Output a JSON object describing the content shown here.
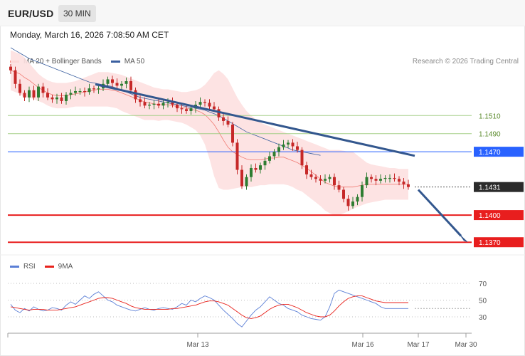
{
  "header": {
    "symbol": "EUR/USD",
    "timeframe": "30 MIN"
  },
  "timestamp": "Monday, March 16, 2026 7:08:50 AM CET",
  "credit": "Research © 2026 Trading Central",
  "legend_main": [
    {
      "label": "MA 20 + Bollinger Bands",
      "color": "#f28b82"
    },
    {
      "label": "MA 50",
      "color": "#3a5f9f"
    }
  ],
  "legend_rsi": [
    {
      "label": "RSI",
      "color": "#5b7fd6"
    },
    {
      "label": "9MA",
      "color": "#e8221c"
    }
  ],
  "colors": {
    "up": "#2e7d32",
    "down": "#c62828",
    "band_fill": "#fde0e0",
    "ma20": "#f07a72",
    "ma50": "#3a5f9f",
    "trendline": "#33578e",
    "green_level": "#a7d08a",
    "blue_level": "#2962ff",
    "red_level": "#e81e1e",
    "current": "#2b2b2b"
  },
  "chart_data": [
    {
      "type": "candlestick",
      "title": "EUR/USD 30 MIN",
      "x_ticks": [
        "Mar 13",
        "Mar 16",
        "Mar 17",
        "Mar 30"
      ],
      "ylim": [
        1.1356,
        1.1559
      ],
      "levels": [
        {
          "value": 1.151,
          "label": "1.1510",
          "kind": "resistance-minor"
        },
        {
          "value": 1.149,
          "label": "1.1490",
          "kind": "resistance-minor"
        },
        {
          "value": 1.147,
          "label": "1.1470",
          "kind": "pivot"
        },
        {
          "value": 1.1431,
          "label": "1.1431",
          "kind": "current"
        },
        {
          "value": 1.14,
          "label": "1.1400",
          "kind": "support"
        },
        {
          "value": 1.137,
          "label": "1.1370",
          "kind": "support"
        }
      ],
      "closes": [
        1.156,
        1.1545,
        1.1535,
        1.153,
        1.1538,
        1.153,
        1.1542,
        1.1535,
        1.153,
        1.1528,
        1.153,
        1.1526,
        1.1533,
        1.1535,
        1.1537,
        1.1537,
        1.1536,
        1.154,
        1.1539,
        1.154,
        1.1545,
        1.155,
        1.1546,
        1.1543,
        1.1545,
        1.1548,
        1.1538,
        1.1528,
        1.1525,
        1.1521,
        1.1522,
        1.1523,
        1.1521,
        1.1524,
        1.1525,
        1.1522,
        1.1518,
        1.1517,
        1.1515,
        1.1518,
        1.1522,
        1.1525,
        1.1524,
        1.152,
        1.1517,
        1.1508,
        1.1504,
        1.15,
        1.148,
        1.145,
        1.1432,
        1.1442,
        1.1452,
        1.145,
        1.1455,
        1.146,
        1.1465,
        1.147,
        1.1475,
        1.1478,
        1.148,
        1.1476,
        1.1472,
        1.1455,
        1.1445,
        1.1442,
        1.144,
        1.1438,
        1.144,
        1.1442,
        1.1433,
        1.1428,
        1.1418,
        1.141,
        1.1415,
        1.142,
        1.1433,
        1.1442,
        1.144,
        1.1438,
        1.144,
        1.1441,
        1.1441,
        1.144,
        1.1437,
        1.1434,
        1.1431
      ],
      "ma20": [
        1.156,
        1.1558,
        1.1556,
        1.1552,
        1.1549,
        1.1545,
        1.1541,
        1.1538,
        1.1535,
        1.1533,
        1.1532,
        1.1532,
        1.1532,
        1.1533,
        1.1534,
        1.1535,
        1.1536,
        1.1537,
        1.1538,
        1.1539,
        1.1539,
        1.1539,
        1.1538,
        1.1537,
        1.1535,
        1.1533,
        1.1531,
        1.1529,
        1.1527,
        1.1525,
        1.1524,
        1.1523,
        1.1522,
        1.1522,
        1.1522,
        1.1521,
        1.152,
        1.1519,
        1.1518,
        1.1517,
        1.1516,
        1.1514,
        1.1511,
        1.1506,
        1.15,
        1.1492,
        1.1483,
        1.1475,
        1.147,
        1.1467,
        1.1464,
        1.1462,
        1.1461,
        1.1461,
        1.1461,
        1.1462,
        1.1463,
        1.1463,
        1.1464,
        1.1464,
        1.1462,
        1.146,
        1.1458,
        1.1455,
        1.1452,
        1.1448,
        1.1444,
        1.144,
        1.1436,
        1.1434,
        1.1432,
        1.1431,
        1.1431,
        1.1431,
        1.1431,
        1.1432,
        1.1433,
        1.1434,
        1.1434,
        1.1434,
        1.1434,
        1.1434,
        1.1434,
        1.1434,
        1.1434,
        1.1434,
        1.1434
      ],
      "bb_upper": [
        1.1582,
        1.158,
        1.1578,
        1.1574,
        1.1568,
        1.1562,
        1.1556,
        1.1552,
        1.1549,
        1.1547,
        1.1546,
        1.1546,
        1.1546,
        1.1547,
        1.1548,
        1.155,
        1.1552,
        1.1554,
        1.1556,
        1.1558,
        1.1558,
        1.1558,
        1.1557,
        1.1556,
        1.1555,
        1.1553,
        1.1551,
        1.1549,
        1.1547,
        1.1545,
        1.1543,
        1.1541,
        1.154,
        1.1539,
        1.1539,
        1.1538,
        1.1537,
        1.1536,
        1.1536,
        1.1537,
        1.1538,
        1.154,
        1.1544,
        1.155,
        1.1557,
        1.156,
        1.1556,
        1.155,
        1.154,
        1.153,
        1.1522,
        1.1515,
        1.151,
        1.1506,
        1.1502,
        1.15,
        1.1498,
        1.1496,
        1.1494,
        1.1492,
        1.149,
        1.1488,
        1.1486,
        1.1484,
        1.1482,
        1.148,
        1.1478,
        1.1476,
        1.1474,
        1.1472,
        1.1472,
        1.1472,
        1.1471,
        1.147,
        1.147,
        1.1466,
        1.1462,
        1.1458,
        1.1456,
        1.1455,
        1.1454,
        1.1453,
        1.1452,
        1.1452,
        1.1451,
        1.1451,
        1.1451
      ],
      "bb_lower": [
        1.1538,
        1.1536,
        1.1534,
        1.153,
        1.153,
        1.1528,
        1.1526,
        1.1524,
        1.1521,
        1.1519,
        1.1518,
        1.1518,
        1.1518,
        1.1519,
        1.152,
        1.152,
        1.152,
        1.152,
        1.152,
        1.152,
        1.152,
        1.152,
        1.1519,
        1.1518,
        1.1515,
        1.1513,
        1.1511,
        1.1509,
        1.1507,
        1.1505,
        1.1505,
        1.1505,
        1.1504,
        1.1505,
        1.1505,
        1.1504,
        1.1503,
        1.1502,
        1.15,
        1.1497,
        1.1494,
        1.1488,
        1.1478,
        1.1462,
        1.1443,
        1.143,
        1.1428,
        1.1428,
        1.1429,
        1.143,
        1.1431,
        1.1431,
        1.1431,
        1.1432,
        1.1433,
        1.1433,
        1.1434,
        1.1434,
        1.1434,
        1.1434,
        1.1433,
        1.1431,
        1.1428,
        1.1426,
        1.1422,
        1.1418,
        1.1414,
        1.141,
        1.1405,
        1.1402,
        1.14,
        1.14,
        1.1402,
        1.1404,
        1.1407,
        1.1409,
        1.1411,
        1.1413,
        1.1414,
        1.1415,
        1.1416,
        1.1417,
        1.1417,
        1.1417,
        1.1417,
        1.1417,
        1.1417
      ],
      "ma50": [
        1.1585,
        1.1582,
        1.1579,
        1.1576,
        1.1573,
        1.1571,
        1.1569,
        1.1567,
        1.1565,
        1.1563,
        1.1561,
        1.1559,
        1.1557,
        1.1555,
        1.1553,
        1.1551,
        1.1549,
        1.1547,
        1.1546,
        1.1545,
        1.1544,
        1.1543,
        1.1542,
        1.154,
        1.1538,
        1.1536,
        1.1534,
        1.1532,
        1.153,
        1.1529,
        1.1528,
        1.1527,
        1.1526,
        1.1525,
        1.1524,
        1.1523,
        1.1522,
        1.1521,
        1.152,
        1.1519,
        1.1518,
        1.1517,
        1.1516,
        1.1514,
        1.1512,
        1.151,
        1.1507,
        1.1504,
        1.1501,
        1.1498,
        1.1495,
        1.1492,
        1.149,
        1.1488,
        1.1486,
        1.1484,
        1.1482,
        1.148,
        1.1478,
        1.1476,
        1.1474,
        1.1472,
        1.1471,
        1.147,
        1.1469,
        1.1468,
        1.1467,
        1.1466
      ]
    },
    {
      "type": "line",
      "title": "RSI",
      "ylim": [
        15,
        85
      ],
      "y_ticks": [
        30,
        50,
        70
      ],
      "series": [
        {
          "name": "RSI",
          "values": [
            45,
            38,
            35,
            40,
            37,
            42,
            39,
            37,
            38,
            41,
            40,
            38,
            44,
            48,
            45,
            50,
            55,
            52,
            57,
            60,
            55,
            50,
            48,
            44,
            42,
            40,
            38,
            37,
            39,
            41,
            39,
            38,
            40,
            41,
            40,
            39,
            42,
            46,
            44,
            50,
            48,
            52,
            55,
            53,
            50,
            44,
            38,
            33,
            28,
            22,
            18,
            25,
            32,
            38,
            42,
            48,
            54,
            50,
            46,
            44,
            40,
            38,
            36,
            32,
            30,
            28,
            27,
            26,
            30,
            42,
            58,
            62,
            60,
            58,
            56,
            54,
            52,
            50,
            48,
            46,
            42,
            40,
            40,
            40,
            40,
            40,
            40
          ]
        },
        {
          "name": "9MA",
          "values": [
            42,
            41,
            40,
            39,
            38,
            39,
            39,
            39,
            38,
            38,
            38,
            39,
            40,
            41,
            42,
            44,
            46,
            48,
            50,
            52,
            53,
            53,
            52,
            50,
            48,
            46,
            43,
            41,
            40,
            39,
            39,
            39,
            39,
            39,
            39,
            40,
            40,
            41,
            42,
            43,
            44,
            46,
            48,
            49,
            49,
            48,
            46,
            44,
            40,
            36,
            32,
            29,
            28,
            29,
            31,
            35,
            39,
            42,
            44,
            45,
            45,
            43,
            41,
            38,
            35,
            33,
            31,
            30,
            30,
            32,
            37,
            43,
            48,
            52,
            54,
            55,
            55,
            53,
            51,
            49,
            48,
            47,
            47,
            47,
            47,
            47,
            47
          ]
        }
      ]
    }
  ]
}
